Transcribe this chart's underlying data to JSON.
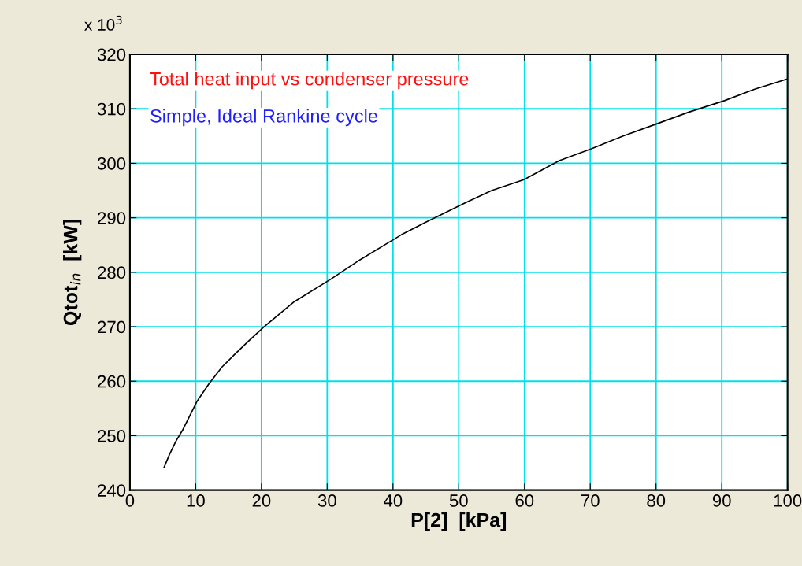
{
  "chart_data": {
    "type": "line",
    "title": "Total heat input vs condenser pressure",
    "subtitle": "Simple, Ideal Rankine cycle",
    "xlabel": "P[2]  [kPa]",
    "ylabel": "Qtot$_{in}$  [kW]",
    "annotations": [
      "x 10$^{3}$"
    ],
    "x": [
      5.2,
      6,
      7,
      8,
      10.2,
      12,
      14,
      16,
      18,
      20.4,
      25,
      30.5,
      35,
      41.3,
      45,
      50.9,
      55,
      59.9,
      65.3,
      70,
      75,
      80,
      85,
      90.4,
      95,
      100
    ],
    "series": [
      {
        "color": "#000000",
        "values": [
          244.2,
          246.5,
          249,
          251,
          256.3,
          259.5,
          262.6,
          265,
          267.3,
          270,
          274.6,
          278.7,
          282.3,
          286.9,
          289.2,
          292.7,
          295,
          297,
          300.5,
          302.6,
          305,
          307.2,
          309.4,
          311.5,
          313.6,
          315.5
        ]
      }
    ],
    "xlim": [
      0,
      100
    ],
    "ylim": [
      240,
      320
    ],
    "xticks": [
      0,
      10,
      20,
      30,
      40,
      50,
      60,
      70,
      80,
      90,
      100
    ],
    "yticks": [
      240,
      250,
      260,
      270,
      280,
      290,
      300,
      310,
      320
    ],
    "grid": true,
    "marker": "none",
    "line_style": "solid"
  }
}
